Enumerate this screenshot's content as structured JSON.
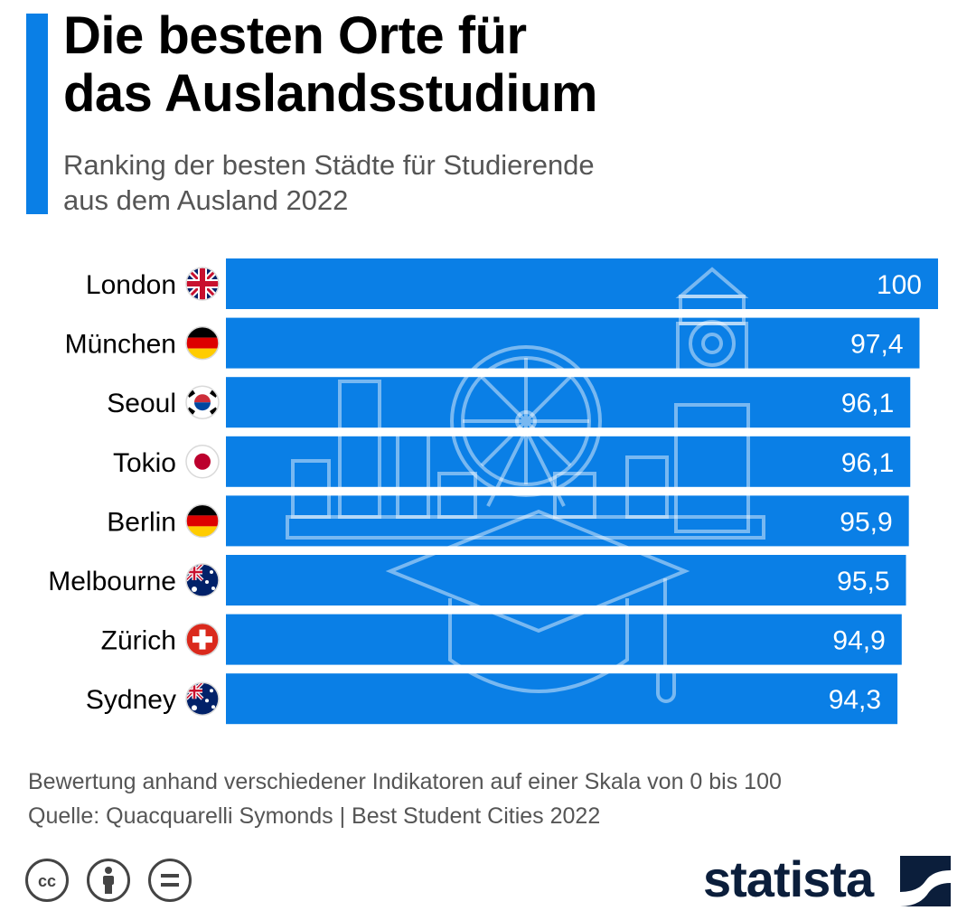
{
  "header": {
    "title_line1": "Die besten Orte für",
    "title_line2": "das Auslandsstudium",
    "subtitle_line1": "Ranking der besten Städte für Studierende",
    "subtitle_line2": "aus dem Ausland 2022"
  },
  "chart_data": {
    "type": "bar",
    "orientation": "horizontal",
    "categories": [
      "London",
      "München",
      "Seoul",
      "Tokio",
      "Berlin",
      "Melbourne",
      "Zürich",
      "Sydney"
    ],
    "value_labels": [
      "100",
      "97,4",
      "96,1",
      "96,1",
      "95,9",
      "95,5",
      "94,9",
      "94,3"
    ],
    "values": [
      100,
      97.4,
      96.1,
      96.1,
      95.9,
      95.5,
      94.9,
      94.3
    ],
    "flags": [
      "uk-flag-icon",
      "germany-flag-icon",
      "south-korea-flag-icon",
      "japan-flag-icon",
      "germany-flag-icon",
      "australia-flag-icon",
      "switzerland-flag-icon",
      "australia-flag-icon"
    ],
    "bar_color": "#0a7fe6",
    "label_color": "#ffffff",
    "grid": false,
    "legend": "none"
  },
  "footer": {
    "note": "Bewertung anhand verschiedener Indikatoren auf einer Skala von 0 bis 100",
    "source": "Quelle: Quacquarelli Symonds | Best Student Cities 2022",
    "brand": "statista",
    "license_icons": [
      "cc-icon",
      "attribution-icon",
      "no-derivatives-icon"
    ]
  }
}
